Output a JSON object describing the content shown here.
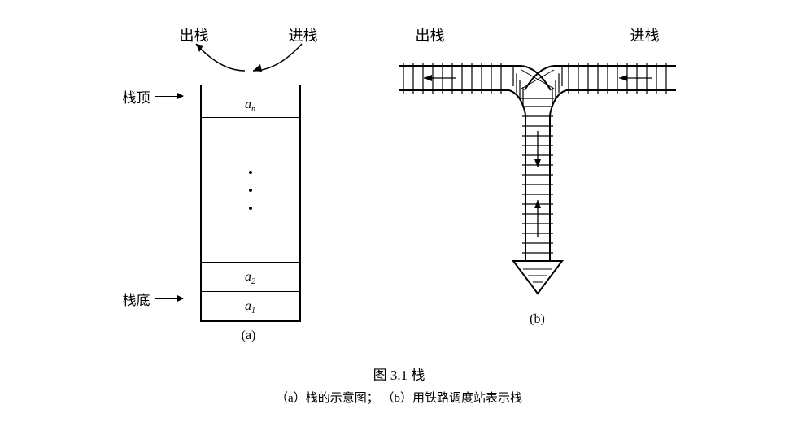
{
  "figure_a": {
    "label_out": "出栈",
    "label_in": "进栈",
    "label_top": "栈顶",
    "label_bottom": "栈底",
    "cell_an": "a",
    "cell_an_sub": "n",
    "cell_a2": "a",
    "cell_a2_sub": "2",
    "cell_a1": "a",
    "cell_a1_sub": "1",
    "sub_label": "(a)",
    "stack_width": 120,
    "stack_height": 290,
    "stroke": "#000000",
    "dot_color": "#000000"
  },
  "figure_b": {
    "label_out": "出栈",
    "label_in": "进栈",
    "sub_label": "(b)",
    "rail_color": "#000000",
    "tie_color": "#000000",
    "tie_spacing": 12,
    "rail_stroke_width": 2,
    "tie_stroke_width": 1.2,
    "arrow_color": "#000000"
  },
  "caption": {
    "main": "图 3.1  栈",
    "sub": "（a）栈的示意图；  （b）用铁路调度站表示栈"
  },
  "colors": {
    "background": "#ffffff",
    "stroke": "#000000",
    "text": "#000000"
  },
  "typography": {
    "font_family": "SimSun",
    "label_fontsize": 18,
    "side_label_fontsize": 17,
    "cell_fontsize": 16,
    "caption_fontsize": 17,
    "caption_sub_fontsize": 15
  }
}
